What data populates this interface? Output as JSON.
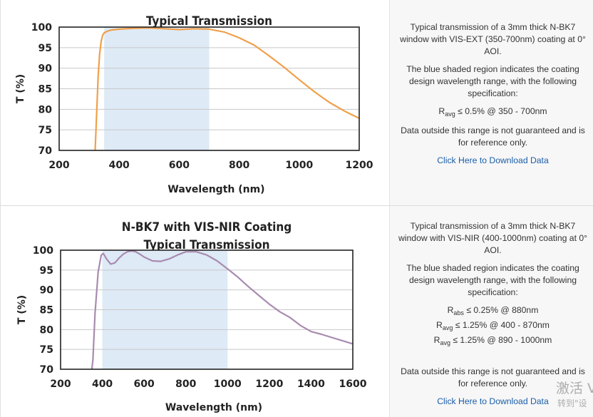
{
  "rows": [
    {
      "chart": {
        "title_line1": "",
        "title_line2": "Typical Transmission",
        "ylabel": "T (%)",
        "xlabel": "Wavelength (nm)"
      },
      "description": {
        "para1": "Typical transmission of a 3mm thick N-BK7 window with VIS-EXT (350-700nm) coating at 0° AOI.",
        "para2": "The blue shaded region indicates the coating design wavelength range, with the following specification:",
        "specs": [
          {
            "sym": "R",
            "sub": "avg",
            "text": " ≤ 0.5% @ 350 - 700nm"
          }
        ],
        "para3": "Data outside this range is not guaranteed and is for reference only.",
        "link": "Click Here to Download Data"
      }
    },
    {
      "chart": {
        "title_line1": "N-BK7 with VIS-NIR Coating",
        "title_line2": "Typical Transmission",
        "ylabel": "T (%)",
        "xlabel": "Wavelength (nm)"
      },
      "description": {
        "para1": "Typical transmission of a 3mm thick N-BK7 window with VIS-NIR (400-1000nm) coating at 0° AOI.",
        "para2": "The blue shaded region indicates the coating design wavelength range, with the following specification:",
        "specs": [
          {
            "sym": "R",
            "sub": "abs",
            "text": " ≤ 0.25% @ 880nm"
          },
          {
            "sym": "R",
            "sub": "avg",
            "text": " ≤ 1.25% @ 400 - 870nm"
          },
          {
            "sym": "R",
            "sub": "avg",
            "text": " ≤ 1.25% @ 890 - 1000nm"
          }
        ],
        "para3": "Data outside this range is not guaranteed and is for reference only.",
        "link": "Click Here to Download Data"
      }
    }
  ],
  "watermark": {
    "line1": "激活 V",
    "line2": "转到\"设"
  },
  "chart_data": [
    {
      "type": "line",
      "title": "Typical Transmission",
      "xlabel": "Wavelength (nm)",
      "ylabel": "T (%)",
      "xlim": [
        200,
        1200
      ],
      "ylim": [
        70,
        100
      ],
      "xticks": [
        200,
        400,
        600,
        800,
        1000,
        1200
      ],
      "yticks": [
        70,
        75,
        80,
        85,
        90,
        95,
        100
      ],
      "shaded_range": [
        350,
        700
      ],
      "shade_color": "#deeaf6",
      "grid": true,
      "series": [
        {
          "color": "#f0a04a",
          "x": [
            320,
            325,
            330,
            335,
            340,
            345,
            350,
            360,
            375,
            400,
            450,
            500,
            550,
            600,
            650,
            700,
            750,
            800,
            850,
            900,
            950,
            1000,
            1050,
            1100,
            1150,
            1200
          ],
          "y": [
            70,
            79,
            88,
            93.5,
            96.5,
            98,
            98.6,
            99.0,
            99.3,
            99.5,
            99.7,
            99.8,
            99.6,
            99.4,
            99.6,
            99.5,
            98.8,
            97.4,
            95.6,
            93.0,
            90.2,
            87.2,
            84.3,
            81.7,
            79.6,
            77.8
          ]
        }
      ]
    },
    {
      "type": "line",
      "title": "N-BK7 with VIS-NIR Coating Typical Transmission",
      "xlabel": "Wavelength (nm)",
      "ylabel": "T (%)",
      "xlim": [
        200,
        1600
      ],
      "ylim": [
        70,
        100
      ],
      "xticks": [
        200,
        400,
        600,
        800,
        1000,
        1200,
        1400,
        1600
      ],
      "yticks": [
        70,
        75,
        80,
        85,
        90,
        95,
        100
      ],
      "shaded_range": [
        400,
        1000
      ],
      "shade_color": "#deeaf6",
      "grid": true,
      "series": [
        {
          "color": "#a98bb0",
          "x": [
            350,
            355,
            365,
            380,
            395,
            405,
            420,
            440,
            460,
            480,
            500,
            520,
            540,
            560,
            580,
            600,
            640,
            680,
            720,
            760,
            800,
            850,
            900,
            950,
            1000,
            1050,
            1100,
            1150,
            1200,
            1250,
            1300,
            1350,
            1400,
            1450,
            1500,
            1550,
            1600
          ],
          "y": [
            70,
            72.5,
            84,
            94.5,
            98.8,
            99.2,
            97.8,
            96.5,
            96.8,
            98.0,
            99.0,
            99.6,
            99.8,
            99.6,
            99.0,
            98.3,
            97.3,
            97.2,
            97.8,
            98.8,
            99.6,
            99.6,
            98.8,
            97.3,
            95.3,
            93.2,
            90.8,
            88.6,
            86.4,
            84.5,
            83.0,
            81.0,
            79.5,
            78.8,
            78.0,
            77.2,
            76.4
          ]
        }
      ]
    }
  ]
}
